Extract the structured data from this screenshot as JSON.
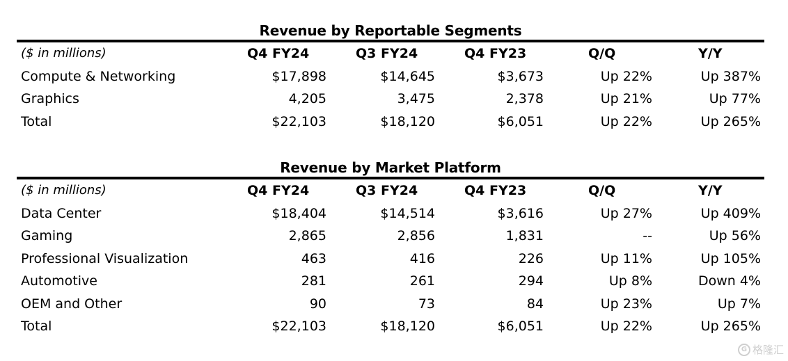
{
  "segments": {
    "title": "Revenue by Reportable Segments",
    "header": {
      "label": "($ in millions)",
      "c1": "Q4 FY24",
      "c2": "Q3 FY24",
      "c3": "Q4 FY23",
      "c4": "Q/Q",
      "c5": "Y/Y"
    },
    "rows": [
      {
        "label": "Compute & Networking",
        "c1": "$17,898",
        "c2": "$14,645",
        "c3": "$3,673",
        "c4": "Up 22%",
        "c5": "Up 387%"
      },
      {
        "label": "Graphics",
        "c1": "4,205",
        "c2": "3,475",
        "c3": "2,378",
        "c4": "Up 21%",
        "c5": "Up 77%"
      },
      {
        "label": "Total",
        "c1": "$22,103",
        "c2": "$18,120",
        "c3": "$6,051",
        "c4": "Up 22%",
        "c5": "Up 265%"
      }
    ]
  },
  "platform": {
    "title": "Revenue by Market Platform",
    "header": {
      "label": "($ in millions)",
      "c1": "Q4 FY24",
      "c2": "Q3 FY24",
      "c3": "Q4 FY23",
      "c4": "Q/Q",
      "c5": "Y/Y"
    },
    "rows": [
      {
        "label": "Data Center",
        "c1": "$18,404",
        "c2": "$14,514",
        "c3": "$3,616",
        "c4": "Up 27%",
        "c5": "Up 409%"
      },
      {
        "label": "Gaming",
        "c1": "2,865",
        "c2": "2,856",
        "c3": "1,831",
        "c4": "--",
        "c5": "Up 56%"
      },
      {
        "label": "Professional Visualization",
        "c1": "463",
        "c2": "416",
        "c3": "226",
        "c4": "Up 11%",
        "c5": "Up 105%"
      },
      {
        "label": "Automotive",
        "c1": "281",
        "c2": "261",
        "c3": "294",
        "c4": "Up 8%",
        "c5": "Down 4%"
      },
      {
        "label": "OEM and Other",
        "c1": "90",
        "c2": "73",
        "c3": "84",
        "c4": "Up 23%",
        "c5": "Up 7%"
      },
      {
        "label": "Total",
        "c1": "$22,103",
        "c2": "$18,120",
        "c3": "$6,051",
        "c4": "Up 22%",
        "c5": "Up 265%"
      }
    ]
  },
  "watermark": {
    "logo": "G",
    "text": "格隆汇"
  }
}
